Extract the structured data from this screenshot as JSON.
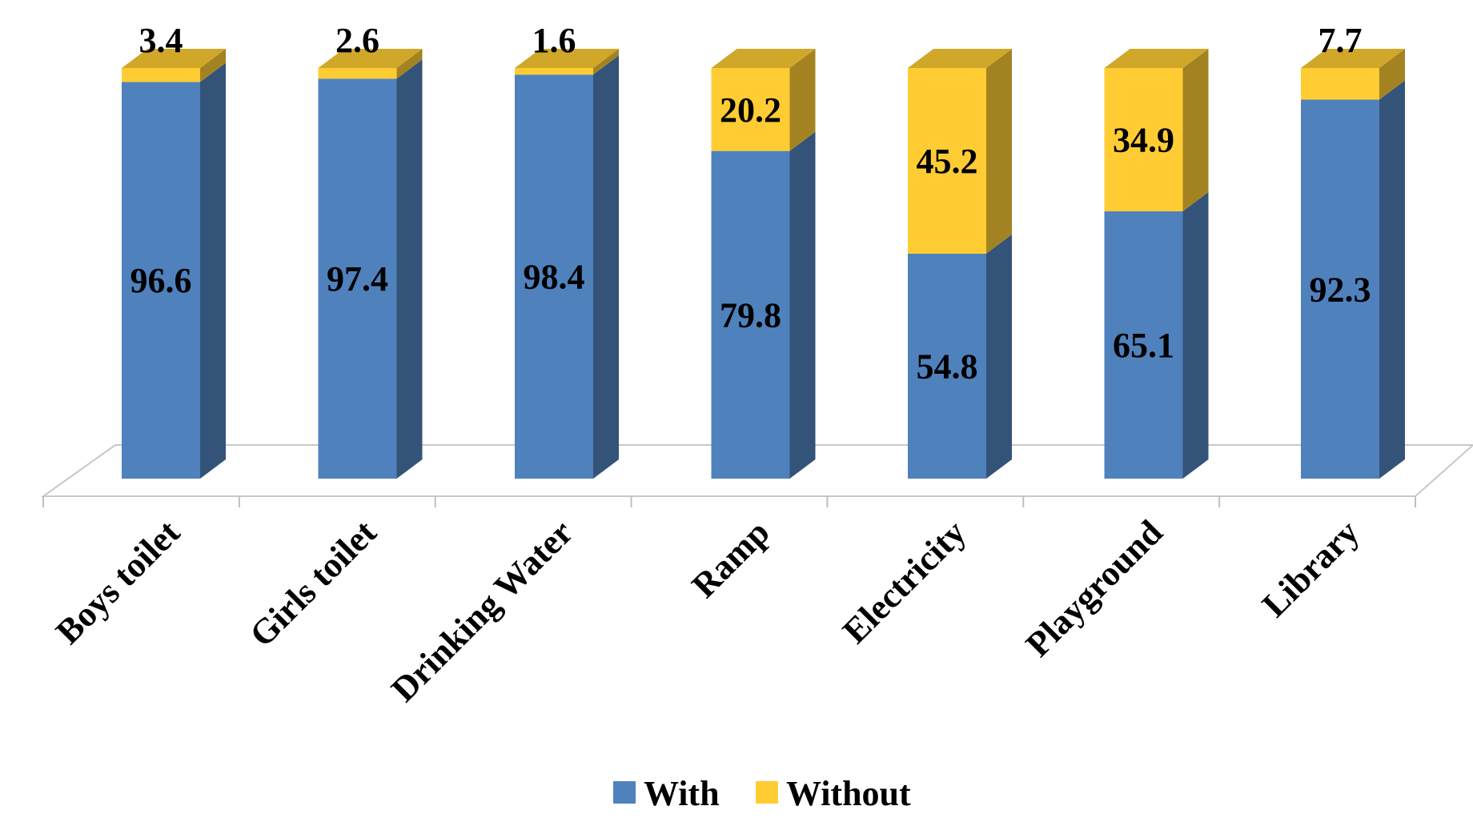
{
  "chart_data": {
    "type": "bar",
    "stacked": true,
    "style": "3d-column",
    "title": "",
    "xlabel": "",
    "ylabel": "",
    "ylim": [
      0,
      100
    ],
    "grid": false,
    "legend_position": "bottom",
    "categories": [
      "Boys toilet",
      "Girls toilet",
      "Drinking Water",
      "Ramp",
      "Electricity",
      "Playground",
      "Library"
    ],
    "series": [
      {
        "name": "With",
        "color": "#4F81BD",
        "values": [
          96.6,
          97.4,
          98.4,
          79.8,
          54.8,
          65.1,
          92.3
        ]
      },
      {
        "name": "Without",
        "color": "#FFCC33",
        "values": [
          3.4,
          2.6,
          1.6,
          20.2,
          45.2,
          34.9,
          7.7
        ]
      }
    ],
    "data_labels": {
      "With": [
        "96.6",
        "97.4",
        "98.4",
        "79.8",
        "54.8",
        "65.1",
        "92.3"
      ],
      "Without": [
        "3.4",
        "2.6",
        "1.6",
        "20.2",
        "45.2",
        "34.9",
        "7.7"
      ]
    }
  }
}
